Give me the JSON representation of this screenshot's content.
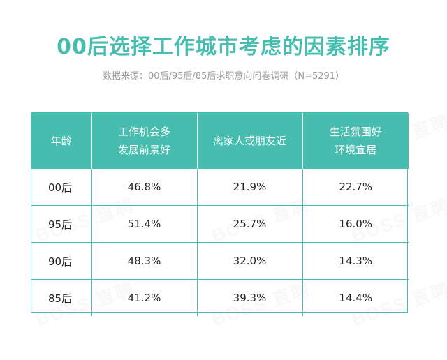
{
  "title": "00后选择工作城市考虑的因素排序",
  "subtitle": "数据来源：00后/95后/85后求职意向问卷调研（N=5291）",
  "watermark": "BOSS 直聘",
  "colors": {
    "accent": "#47bdaf",
    "subtitle": "#9a9a9a",
    "text": "#222222"
  },
  "chart_data": {
    "type": "table",
    "columns": [
      {
        "key": "age",
        "lines": [
          "年龄"
        ]
      },
      {
        "key": "career",
        "lines": [
          "工作机会多",
          "发展前景好"
        ]
      },
      {
        "key": "family",
        "lines": [
          "离家人或朋友近"
        ]
      },
      {
        "key": "living",
        "lines": [
          "生活氛围好",
          "环境宜居"
        ]
      }
    ],
    "rows": [
      {
        "age": "00后",
        "career": "46.8%",
        "family": "21.9%",
        "living": "22.7%"
      },
      {
        "age": "95后",
        "career": "51.4%",
        "family": "25.7%",
        "living": "16.0%"
      },
      {
        "age": "90后",
        "career": "48.3%",
        "family": "32.0%",
        "living": "14.3%"
      },
      {
        "age": "85后",
        "career": "41.2%",
        "family": "39.3%",
        "living": "14.4%"
      }
    ]
  }
}
